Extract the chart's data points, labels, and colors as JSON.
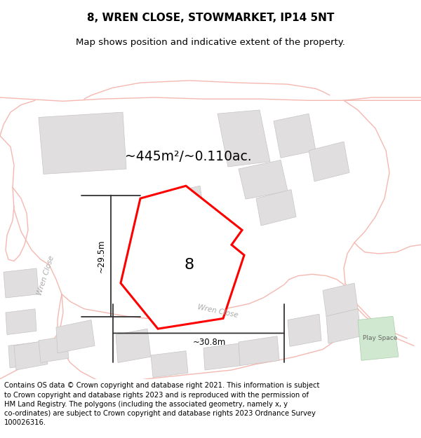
{
  "title": "8, WREN CLOSE, STOWMARKET, IP14 5NT",
  "subtitle": "Map shows position and indicative extent of the property.",
  "footer": "Contains OS data © Crown copyright and database right 2021. This information is subject to Crown copyright and database rights 2023 and is reproduced with the permission of HM Land Registry. The polygons (including the associated geometry, namely x, y co-ordinates) are subject to Crown copyright and database rights 2023 Ordnance Survey 100026316.",
  "area_label": "~445m²/~0.110ac.",
  "label_8": "8",
  "dim_height": "~29.5m",
  "dim_width": "~30.8m",
  "play_space_label": "Play Space",
  "wren_close_left": "Wren Close",
  "wren_close_bottom": "Wren Close",
  "road_color": "#f5b8b0",
  "bldg_fill": "#e0dede",
  "bldg_edge": "#c8c4c4",
  "play_fill": "#d0e8d0",
  "map_bg": "#f8f6f6",
  "title_fontsize": 11,
  "subtitle_fontsize": 9.5,
  "footer_fontsize": 7.2
}
